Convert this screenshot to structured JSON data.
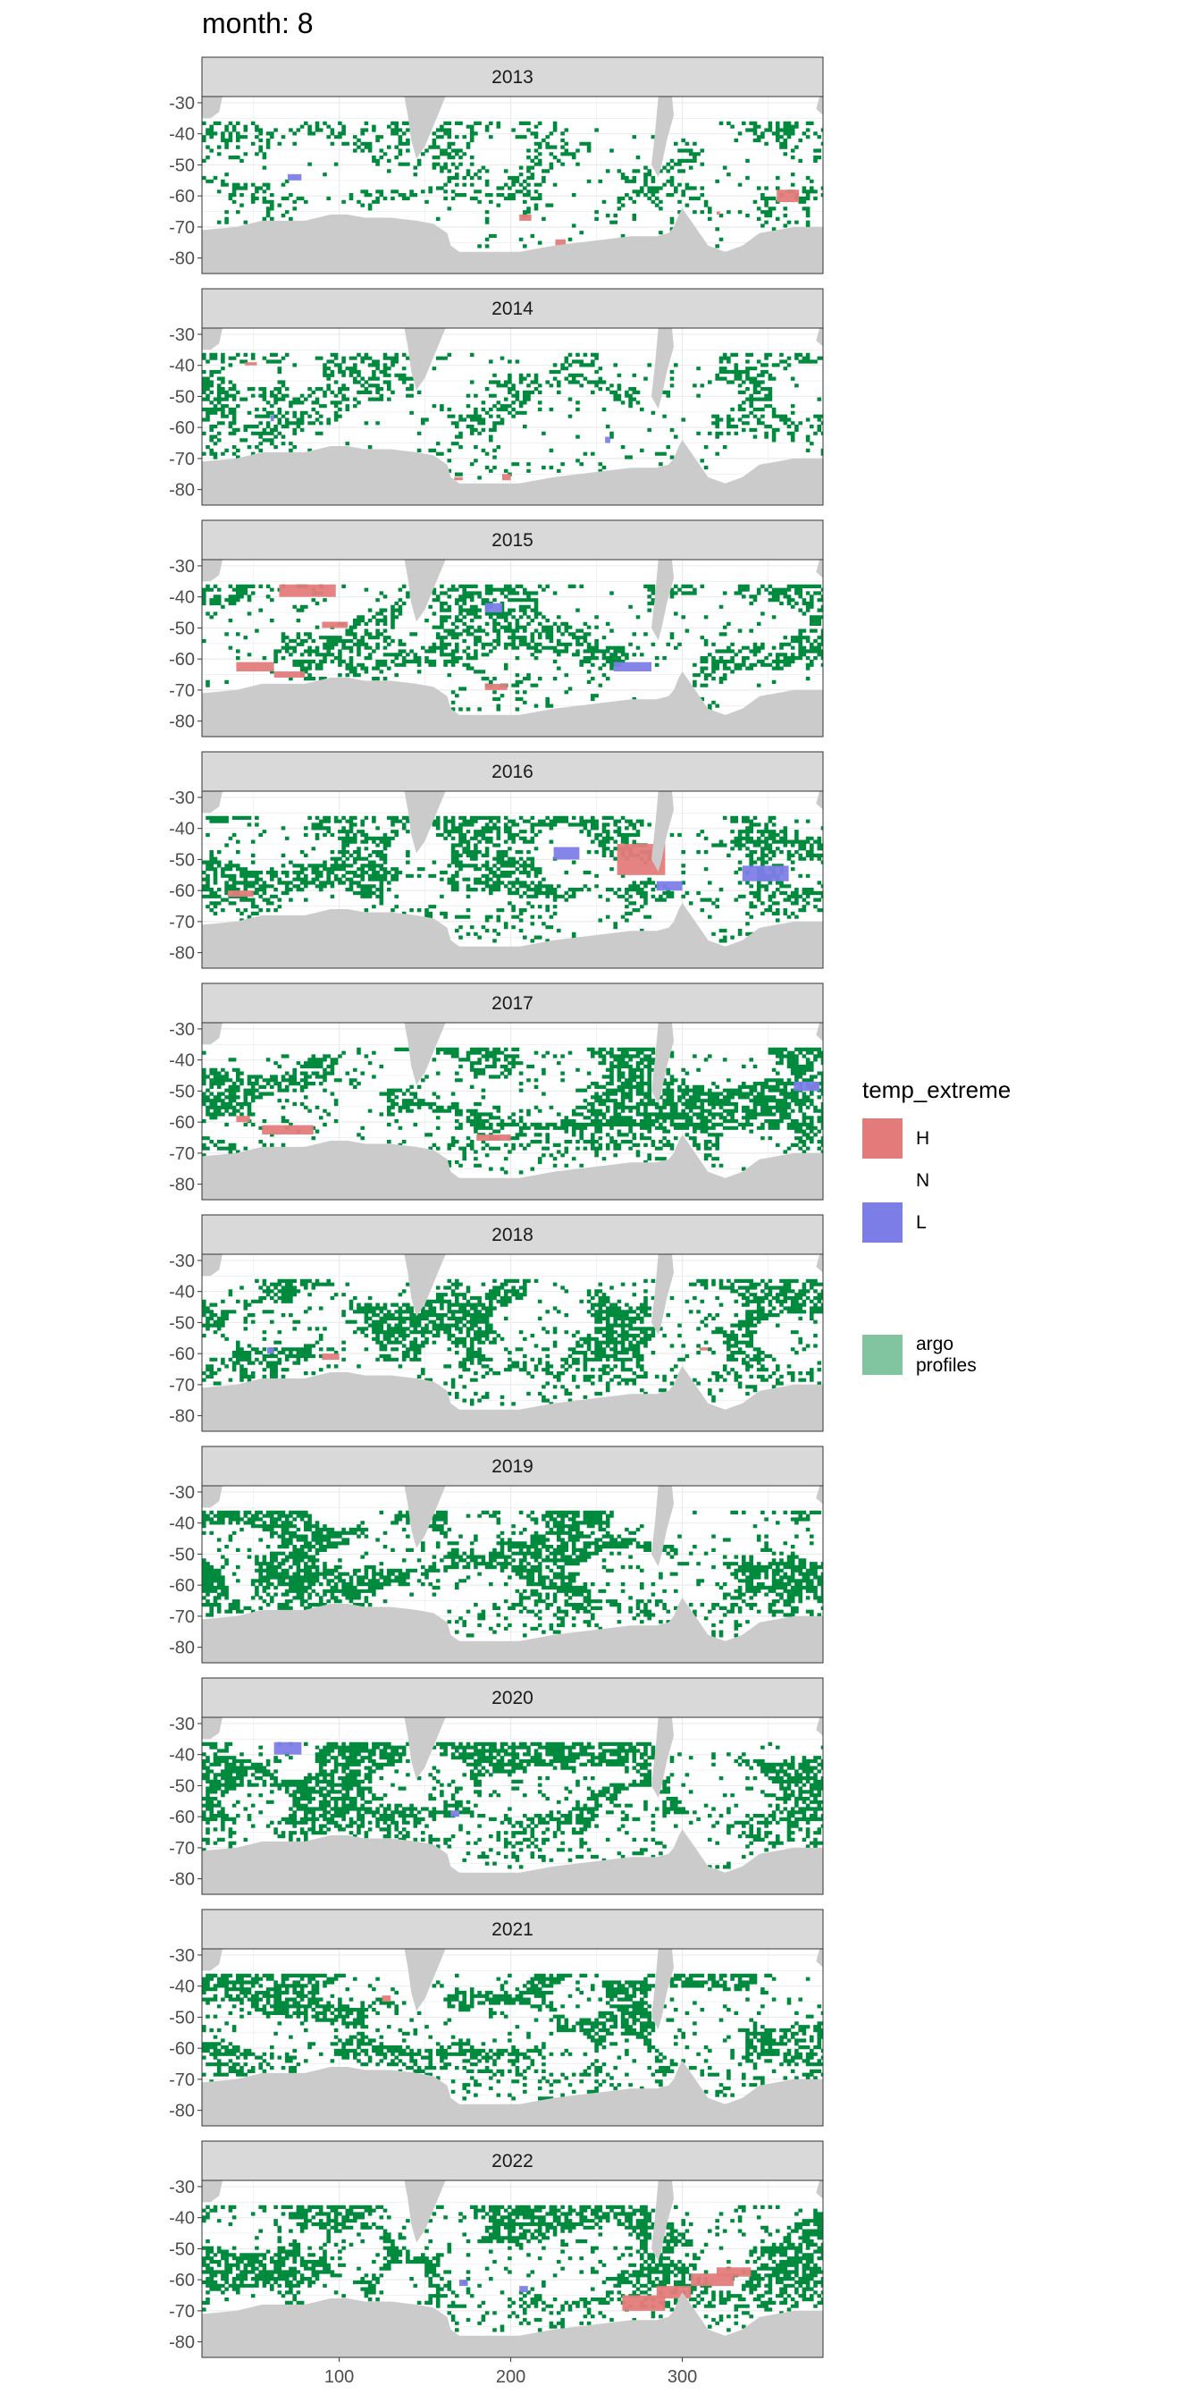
{
  "title": "month: 8",
  "colors": {
    "H": "#e47b7b",
    "N": "#ffffff",
    "L": "#7d7de8",
    "argo": "#008a3e",
    "argo_legend": "#80c59f",
    "land": "#cbcbcb",
    "strip_bg": "#d9d9d9",
    "grid": "#ebebeb",
    "panel_border": "#333333"
  },
  "legend": {
    "title": "temp_extreme",
    "items": [
      {
        "key": "H",
        "label": "H"
      },
      {
        "key": "N",
        "label": "N"
      },
      {
        "key": "L",
        "label": "L"
      }
    ],
    "argo_label_line1": "argo",
    "argo_label_line2": "profiles"
  },
  "chart_data": {
    "type": "heatmap",
    "facet_variable": "year",
    "facets": [
      "2013",
      "2014",
      "2015",
      "2016",
      "2017",
      "2018",
      "2019",
      "2020",
      "2021",
      "2022"
    ],
    "x_ticks": [
      100,
      200,
      300
    ],
    "x_tick_labels": [
      "100",
      "200",
      "300"
    ],
    "xlim": [
      20,
      382
    ],
    "y_ticks": [
      -30,
      -40,
      -50,
      -60,
      -70,
      -80
    ],
    "y_tick_labels": [
      "-30",
      "-40",
      "-50",
      "-60",
      "-70",
      "-80"
    ],
    "ylim": [
      -85,
      -28
    ],
    "grid": true,
    "legend_position": "right",
    "argo_density_by_year": {
      "2013": 0.3,
      "2014": 0.38,
      "2015": 0.5,
      "2016": 0.55,
      "2017": 0.62,
      "2018": 0.65,
      "2019": 0.68,
      "2020": 0.66,
      "2021": 0.66,
      "2022": 0.64
    },
    "extremes": [
      {
        "year": "2013",
        "type": "L",
        "lon_min": 70,
        "lon_max": 78,
        "lat_min": -55,
        "lat_max": -53
      },
      {
        "year": "2013",
        "type": "H",
        "lon_min": 355,
        "lon_max": 368,
        "lat_min": -62,
        "lat_max": -58
      },
      {
        "year": "2013",
        "type": "H",
        "lon_min": 205,
        "lon_max": 212,
        "lat_min": -68,
        "lat_max": -66
      },
      {
        "year": "2013",
        "type": "H",
        "lon_min": 226,
        "lon_max": 232,
        "lat_min": -76,
        "lat_max": -74
      },
      {
        "year": "2013",
        "type": "H",
        "lon_min": 320,
        "lon_max": 322,
        "lat_min": -66,
        "lat_max": -65
      },
      {
        "year": "2014",
        "type": "L",
        "lon_min": 60,
        "lon_max": 62,
        "lat_min": -58,
        "lat_max": -56
      },
      {
        "year": "2014",
        "type": "L",
        "lon_min": 255,
        "lon_max": 258,
        "lat_min": -65,
        "lat_max": -63
      },
      {
        "year": "2014",
        "type": "H",
        "lon_min": 167,
        "lon_max": 172,
        "lat_min": -77,
        "lat_max": -76
      },
      {
        "year": "2014",
        "type": "H",
        "lon_min": 195,
        "lon_max": 200,
        "lat_min": -77,
        "lat_max": -75
      },
      {
        "year": "2014",
        "type": "H",
        "lon_min": 45,
        "lon_max": 52,
        "lat_min": -40,
        "lat_max": -39
      },
      {
        "year": "2015",
        "type": "H",
        "lon_min": 65,
        "lon_max": 98,
        "lat_min": -40,
        "lat_max": -36
      },
      {
        "year": "2015",
        "type": "H",
        "lon_min": 40,
        "lon_max": 62,
        "lat_min": -64,
        "lat_max": -61
      },
      {
        "year": "2015",
        "type": "H",
        "lon_min": 62,
        "lon_max": 80,
        "lat_min": -66,
        "lat_max": -64
      },
      {
        "year": "2015",
        "type": "H",
        "lon_min": 90,
        "lon_max": 105,
        "lat_min": -50,
        "lat_max": -48
      },
      {
        "year": "2015",
        "type": "L",
        "lon_min": 145,
        "lon_max": 150,
        "lat_min": -40,
        "lat_max": -38
      },
      {
        "year": "2015",
        "type": "L",
        "lon_min": 185,
        "lon_max": 195,
        "lat_min": -45,
        "lat_max": -42
      },
      {
        "year": "2015",
        "type": "L",
        "lon_min": 260,
        "lon_max": 282,
        "lat_min": -64,
        "lat_max": -61
      },
      {
        "year": "2015",
        "type": "H",
        "lon_min": 185,
        "lon_max": 198,
        "lat_min": -70,
        "lat_max": -68
      },
      {
        "year": "2016",
        "type": "H",
        "lon_min": 262,
        "lon_max": 290,
        "lat_min": -55,
        "lat_max": -45
      },
      {
        "year": "2016",
        "type": "L",
        "lon_min": 225,
        "lon_max": 240,
        "lat_min": -50,
        "lat_max": -46
      },
      {
        "year": "2016",
        "type": "L",
        "lon_min": 335,
        "lon_max": 362,
        "lat_min": -57,
        "lat_max": -52
      },
      {
        "year": "2016",
        "type": "L",
        "lon_min": 285,
        "lon_max": 300,
        "lat_min": -60,
        "lat_max": -57
      },
      {
        "year": "2016",
        "type": "H",
        "lon_min": 35,
        "lon_max": 50,
        "lat_min": -62,
        "lat_max": -60
      },
      {
        "year": "2017",
        "type": "H",
        "lon_min": 55,
        "lon_max": 85,
        "lat_min": -64,
        "lat_max": -61
      },
      {
        "year": "2017",
        "type": "H",
        "lon_min": 180,
        "lon_max": 200,
        "lat_min": -66,
        "lat_max": -64
      },
      {
        "year": "2017",
        "type": "L",
        "lon_min": 365,
        "lon_max": 380,
        "lat_min": -50,
        "lat_max": -47
      },
      {
        "year": "2017",
        "type": "H",
        "lon_min": 40,
        "lon_max": 48,
        "lat_min": -60,
        "lat_max": -58
      },
      {
        "year": "2018",
        "type": "H",
        "lon_min": 90,
        "lon_max": 100,
        "lat_min": -62,
        "lat_max": -60
      },
      {
        "year": "2018",
        "type": "L",
        "lon_min": 58,
        "lon_max": 62,
        "lat_min": -60,
        "lat_max": -58
      },
      {
        "year": "2018",
        "type": "H",
        "lon_min": 310,
        "lon_max": 315,
        "lat_min": -59,
        "lat_max": -58
      },
      {
        "year": "2020",
        "type": "L",
        "lon_min": 62,
        "lon_max": 78,
        "lat_min": -40,
        "lat_max": -36
      },
      {
        "year": "2020",
        "type": "L",
        "lon_min": 165,
        "lon_max": 170,
        "lat_min": -60,
        "lat_max": -58
      },
      {
        "year": "2021",
        "type": "H",
        "lon_min": 125,
        "lon_max": 130,
        "lat_min": -45,
        "lat_max": -43
      },
      {
        "year": "2022",
        "type": "H",
        "lon_min": 265,
        "lon_max": 290,
        "lat_min": -70,
        "lat_max": -65
      },
      {
        "year": "2022",
        "type": "H",
        "lon_min": 285,
        "lon_max": 305,
        "lat_min": -66,
        "lat_max": -62
      },
      {
        "year": "2022",
        "type": "H",
        "lon_min": 305,
        "lon_max": 330,
        "lat_min": -62,
        "lat_max": -58
      },
      {
        "year": "2022",
        "type": "H",
        "lon_min": 320,
        "lon_max": 340,
        "lat_min": -59,
        "lat_max": -56
      },
      {
        "year": "2022",
        "type": "L",
        "lon_min": 170,
        "lon_max": 175,
        "lat_min": -62,
        "lat_max": -60
      },
      {
        "year": "2022",
        "type": "L",
        "lon_min": 205,
        "lon_max": 210,
        "lat_min": -64,
        "lat_max": -62
      }
    ]
  }
}
